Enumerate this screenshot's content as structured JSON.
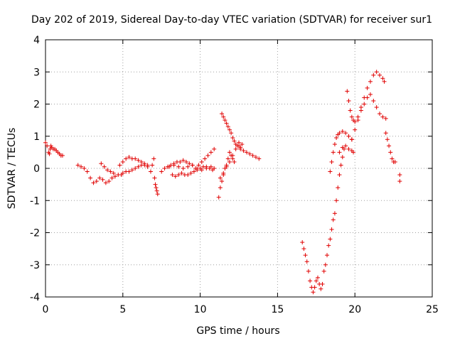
{
  "chart_data": {
    "type": "scatter",
    "title": "Day 202 of 2019, Sidereal Day-to-day VTEC variation (SDTVAR) for receiver sur1",
    "xlabel": "GPS time / hours",
    "ylabel": "SDTVAR / TECUs",
    "xlim": [
      0,
      25
    ],
    "ylim": [
      -4,
      4
    ],
    "xticks": [
      "0",
      "5",
      "10",
      "15",
      "20",
      "25"
    ],
    "yticks": [
      "-4",
      "-3",
      "-2",
      "-1",
      "0",
      "1",
      "2",
      "3",
      "4"
    ],
    "grid": true,
    "marker": "+",
    "color": "#e00000",
    "series": [
      {
        "name": "sur1",
        "x": [
          0.0,
          0.1,
          0.2,
          0.25,
          0.3,
          0.35,
          0.4,
          0.5,
          0.6,
          0.7,
          0.8,
          0.9,
          1.0,
          1.1,
          2.1,
          2.3,
          2.5,
          2.7,
          2.9,
          3.1,
          3.3,
          3.5,
          3.7,
          3.9,
          4.1,
          4.3,
          4.5,
          4.7,
          4.9,
          3.6,
          3.8,
          4.0,
          4.2,
          4.4,
          5.0,
          5.2,
          5.4,
          5.6,
          5.8,
          6.0,
          6.2,
          6.4,
          6.6,
          4.8,
          5.0,
          5.2,
          5.4,
          5.6,
          5.8,
          6.0,
          6.2,
          6.4,
          6.6,
          6.8,
          6.9,
          7.0,
          7.05,
          7.1,
          7.15,
          7.2,
          7.25,
          7.5,
          7.7,
          7.9,
          8.1,
          8.3,
          8.5,
          8.7,
          8.9,
          9.1,
          9.3,
          9.5,
          9.7,
          9.9,
          10.1,
          10.3,
          10.5,
          10.7,
          10.9,
          8.2,
          8.4,
          8.6,
          8.8,
          9.0,
          9.2,
          9.4,
          9.6,
          9.8,
          10.0,
          10.2,
          10.4,
          10.6,
          10.8,
          8.0,
          8.3,
          8.6,
          8.9,
          9.2,
          9.5,
          9.8,
          10.1,
          10.4,
          10.7,
          10.9,
          11.2,
          11.3,
          11.4,
          11.5,
          11.6,
          11.7,
          11.8,
          11.9,
          12.0,
          12.1,
          12.2,
          11.3,
          11.5,
          11.7,
          11.9,
          12.1,
          12.3,
          12.5,
          12.7,
          11.4,
          11.5,
          11.6,
          11.7,
          11.8,
          11.9,
          12.0,
          12.1,
          12.2,
          12.3,
          12.4,
          12.5,
          12.6,
          12.6,
          12.8,
          13.0,
          13.2,
          13.4,
          13.6,
          13.8,
          16.6,
          16.7,
          16.8,
          16.9,
          17.0,
          17.1,
          17.2,
          17.3,
          17.4,
          17.5,
          17.6,
          17.7,
          17.8,
          17.9,
          18.0,
          18.1,
          18.2,
          18.3,
          18.4,
          18.5,
          18.6,
          18.7,
          18.8,
          18.9,
          19.0,
          19.1,
          19.2,
          19.3,
          18.4,
          18.5,
          18.6,
          18.7,
          18.8,
          18.9,
          19.0,
          19.2,
          19.4,
          19.6,
          19.8,
          19.0,
          19.2,
          19.4,
          19.6,
          19.8,
          19.9,
          19.5,
          19.6,
          19.7,
          19.8,
          19.9,
          20.0,
          20.2,
          20.4,
          20.6,
          20.8,
          21.0,
          21.2,
          21.4,
          21.6,
          21.8,
          21.9,
          19.8,
          20.0,
          20.2,
          20.4,
          20.6,
          20.8,
          21.0,
          21.2,
          21.4,
          21.6,
          21.8,
          22.0,
          22.0,
          22.1,
          22.2,
          22.3,
          22.4,
          22.5,
          22.6,
          22.9,
          22.9
        ],
        "y": [
          0.8,
          0.7,
          0.5,
          0.45,
          0.6,
          0.7,
          0.65,
          0.6,
          0.6,
          0.55,
          0.5,
          0.45,
          0.4,
          0.4,
          0.1,
          0.05,
          0.0,
          -0.1,
          -0.3,
          -0.45,
          -0.4,
          -0.3,
          -0.35,
          -0.45,
          -0.4,
          -0.3,
          -0.25,
          -0.2,
          -0.2,
          0.15,
          0.05,
          -0.05,
          -0.1,
          -0.15,
          -0.15,
          -0.1,
          -0.1,
          -0.05,
          0.0,
          0.05,
          0.1,
          0.1,
          0.05,
          0.1,
          0.2,
          0.3,
          0.35,
          0.3,
          0.3,
          0.25,
          0.2,
          0.15,
          0.1,
          -0.1,
          0.1,
          0.3,
          -0.3,
          -0.5,
          -0.6,
          -0.7,
          -0.8,
          -0.1,
          0.0,
          0.05,
          0.1,
          0.15,
          0.2,
          0.2,
          0.25,
          0.2,
          0.15,
          0.1,
          0.0,
          0.1,
          0.2,
          0.3,
          0.4,
          0.5,
          0.6,
          -0.2,
          -0.25,
          -0.2,
          -0.15,
          -0.2,
          -0.2,
          -0.15,
          -0.1,
          -0.05,
          0.0,
          0.05,
          0.05,
          0.0,
          -0.05,
          0.05,
          0.1,
          0.05,
          0.0,
          0.05,
          0.1,
          0.0,
          -0.05,
          0.0,
          0.05,
          0.0,
          -0.9,
          -0.6,
          -0.4,
          -0.2,
          0.0,
          0.1,
          0.3,
          0.5,
          0.4,
          0.3,
          0.2,
          -0.3,
          -0.15,
          0.05,
          0.2,
          0.4,
          0.6,
          0.8,
          0.75,
          1.7,
          1.6,
          1.5,
          1.4,
          1.3,
          1.2,
          1.1,
          0.95,
          0.85,
          0.75,
          0.7,
          0.7,
          0.6,
          0.65,
          0.55,
          0.5,
          0.45,
          0.4,
          0.35,
          0.3,
          -2.3,
          -2.5,
          -2.7,
          -2.9,
          -3.2,
          -3.5,
          -3.7,
          -3.85,
          -3.7,
          -3.5,
          -3.4,
          -3.6,
          -3.75,
          -3.6,
          -3.2,
          -3.0,
          -2.7,
          -2.4,
          -2.2,
          -1.9,
          -1.6,
          -1.4,
          -1.0,
          -0.6,
          -0.2,
          0.1,
          0.35,
          0.6,
          -0.1,
          0.2,
          0.5,
          0.75,
          0.95,
          1.05,
          1.1,
          1.15,
          1.1,
          1.0,
          0.9,
          0.5,
          0.65,
          0.7,
          0.6,
          0.55,
          0.5,
          2.4,
          2.1,
          1.8,
          1.6,
          1.5,
          1.45,
          1.6,
          1.9,
          2.2,
          2.5,
          2.7,
          2.9,
          3.0,
          2.9,
          2.8,
          2.7,
          0.9,
          1.2,
          1.5,
          1.8,
          2.0,
          2.2,
          2.3,
          2.1,
          1.9,
          1.7,
          1.6,
          1.55,
          1.1,
          0.9,
          0.7,
          0.5,
          0.3,
          0.2,
          0.2,
          -0.2,
          -0.4
        ]
      }
    ]
  }
}
